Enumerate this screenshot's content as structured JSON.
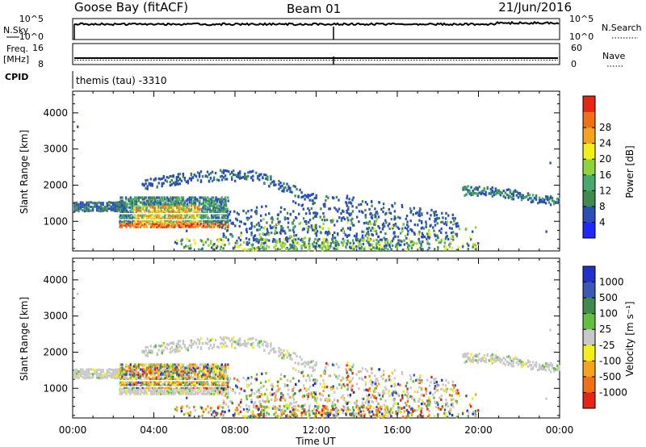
{
  "header": {
    "station": "Goose Bay (fitACF)",
    "beam": "Beam 01",
    "date": "21/Jun/2016"
  },
  "panels": {
    "nsky_label": "N.Sky",
    "nsearch_label": "N.Search",
    "freq_label_1": "Freq.",
    "freq_label_2": "[MHz]",
    "nave_label": "Nave",
    "cpid_label": "CPID",
    "cpid_value": "themis (tau) -3310",
    "nsky_ticks": [
      "10^5",
      "10^0"
    ],
    "freq_ticks": [
      "16",
      "8"
    ],
    "nave_ticks": [
      "60",
      "0"
    ]
  },
  "colors": {
    "power": [
      "#1e28ff",
      "#2a50b8",
      "#3f8a4c",
      "#48a96e",
      "#8fd33a",
      "#f2ef1a",
      "#f5a21c",
      "#f07016",
      "#e62515"
    ],
    "velocity": [
      "#2030c8",
      "#3b58b5",
      "#3f8a4c",
      "#62c040",
      "#c8c8c8",
      "#f2ef1a",
      "#f5a21c",
      "#f07016",
      "#e62515"
    ]
  },
  "chart_data": [
    {
      "type": "line",
      "name": "nsky-panel",
      "x": [
        "00:00",
        "04:00",
        "08:00",
        "12:00",
        "16:00",
        "20:00",
        "00:00"
      ],
      "ytick_labels": [
        "10^5",
        "10^0"
      ],
      "right_ytick_labels": [
        "10^5",
        "10^0"
      ]
    },
    {
      "type": "line",
      "name": "freq-panel",
      "ytick_labels": [
        "16",
        "8"
      ],
      "right_ytick_labels": [
        "60",
        "0"
      ]
    },
    {
      "type": "heatmap",
      "name": "power",
      "ylabel": "Slant Range [km]",
      "xlim_hours": [
        0,
        24
      ],
      "ylim": [
        180,
        4600
      ],
      "yticks": [
        1000,
        2000,
        3000,
        4000
      ],
      "colorbar_label": "Power [dB]",
      "colorbar_ticks": [
        "4",
        "8",
        "12",
        "16",
        "20",
        "24",
        "28"
      ]
    },
    {
      "type": "heatmap",
      "name": "velocity",
      "ylabel": "Slant Range [km]",
      "xlabel": "Time UT",
      "xlim_hours": [
        0,
        24
      ],
      "ylim": [
        180,
        4600
      ],
      "yticks": [
        1000,
        2000,
        3000,
        4000
      ],
      "xtick_labels": [
        "00:00",
        "04:00",
        "08:00",
        "12:00",
        "16:00",
        "20:00",
        "00:00"
      ],
      "colorbar_label": "Velocity [m s⁻¹]",
      "colorbar_ticks": [
        "1000",
        "500",
        "100",
        "25",
        "-25",
        "-100",
        "-500",
        "-1000"
      ]
    }
  ]
}
